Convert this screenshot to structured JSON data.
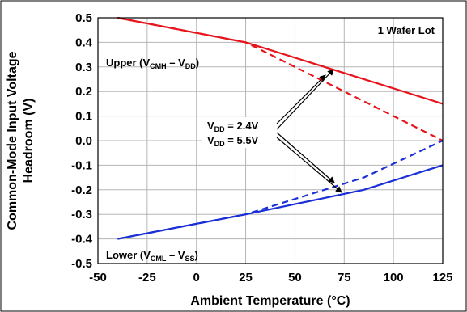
{
  "chart_data": {
    "type": "line",
    "title": "",
    "xlabel": "Ambient Temperature (°C)",
    "ylabel_line1": "Common-Mode Input Voltage",
    "ylabel_line2": "Headroom (V)",
    "xlim": [
      -50,
      125
    ],
    "ylim": [
      -0.5,
      0.5
    ],
    "x_ticks": [
      "-50",
      "-25",
      "0",
      "25",
      "50",
      "75",
      "100",
      "125"
    ],
    "y_ticks": [
      "0.5",
      "0.4",
      "0.3",
      "0.2",
      "0.1",
      "0.0",
      "-0.1",
      "-0.2",
      "-0.3",
      "-0.4",
      "-0.5"
    ],
    "x_tick_values": [
      -50,
      -25,
      0,
      25,
      50,
      75,
      100,
      125
    ],
    "y_tick_values": [
      0.5,
      0.4,
      0.3,
      0.2,
      0.1,
      0.0,
      -0.1,
      -0.2,
      -0.3,
      -0.4,
      -0.5
    ],
    "grid": true,
    "series": [
      {
        "group": "upper",
        "vdd": "2.4V",
        "style": "dashed",
        "color": "#e8141c",
        "x": [
          -40,
          25,
          125
        ],
        "y": [
          0.5,
          0.4,
          0.0
        ]
      },
      {
        "group": "upper",
        "vdd": "5.5V",
        "style": "solid",
        "color": "#e8141c",
        "x": [
          -40,
          25,
          125
        ],
        "y": [
          0.5,
          0.4,
          0.15
        ]
      },
      {
        "group": "lower",
        "vdd": "2.4V",
        "style": "dashed",
        "color": "#1a2fd6",
        "x": [
          -40,
          25,
          85,
          125
        ],
        "y": [
          -0.4,
          -0.3,
          -0.15,
          0.0
        ]
      },
      {
        "group": "lower",
        "vdd": "5.5V",
        "style": "solid",
        "color": "#1a2fd6",
        "x": [
          -40,
          25,
          85,
          125
        ],
        "y": [
          -0.4,
          -0.3,
          -0.2,
          -0.1
        ]
      }
    ],
    "annotations": {
      "wafer_lot": "1 Wafer Lot",
      "upper": {
        "prefix": "Upper (V",
        "sub1": "CMH",
        "mid": " – V",
        "sub2": "DD",
        "suffix": ")"
      },
      "lower": {
        "prefix": "Lower (V",
        "sub1": "CML",
        "mid": " – V",
        "sub2": "SS",
        "suffix": ")"
      },
      "vdd1": {
        "prefix": "V",
        "sub": "DD",
        "value": " = 2.4V"
      },
      "vdd2": {
        "prefix": "V",
        "sub": "DD",
        "value": " = 5.5V"
      }
    }
  }
}
